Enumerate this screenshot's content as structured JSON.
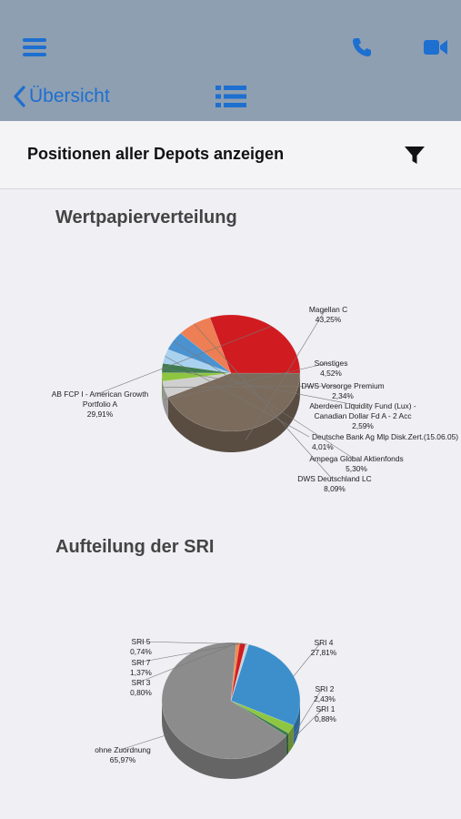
{
  "navbar": {
    "back_label": "Übersicht",
    "menu_icon": "hamburger-menu-icon",
    "phone_icon": "phone-icon",
    "video_icon": "video-camera-icon",
    "list_icon": "list-icon",
    "accent": "#1d6fd0"
  },
  "subheader": {
    "title": "Positionen aller Depots anzeigen",
    "filter_icon": "filter-icon"
  },
  "chart_data": [
    {
      "type": "pie",
      "title": "Wertpapierverteilung",
      "slices": [
        {
          "label": [
            "Magellan C"
          ],
          "value": 43.25,
          "value_label": "43,25%",
          "color": "#7b6b5c"
        },
        {
          "label": [
            "Sonstiges"
          ],
          "value": 4.52,
          "value_label": "4,52%",
          "color": "#cfcfcf"
        },
        {
          "label": [
            "DWS Vorsorge Premium"
          ],
          "value": 2.34,
          "value_label": "2,34%",
          "color": "#8fc641"
        },
        {
          "label": [
            "Aberdeen Liquidity Fund (Lux) -",
            "Canadian Dollar Fd A - 2 Acc"
          ],
          "value": 2.59,
          "value_label": "2,59%",
          "color": "#3f7d4f"
        },
        {
          "label": [
            "Deutsche Bank Ag Mlp Disk.Zert.(15.06.05)"
          ],
          "value": 4.01,
          "value_label": "4,01%",
          "color": "#a9d2ef"
        },
        {
          "label": [
            "Ampega Global Aktienfonds"
          ],
          "value": 5.3,
          "value_label": "5,30%",
          "color": "#4b93d0"
        },
        {
          "label": [
            "DWS Deutschland LC"
          ],
          "value": 8.09,
          "value_label": "8,09%",
          "color": "#ee7e53"
        },
        {
          "label": [
            "AB FCP I - American Growth",
            "Portfolio A"
          ],
          "value": 29.91,
          "value_label": "29,91%",
          "color": "#d01c20"
        }
      ]
    },
    {
      "type": "pie",
      "title": "Aufteilung der SRI",
      "slices": [
        {
          "label": [
            "SRI 4"
          ],
          "value": 27.81,
          "value_label": "27,81%",
          "color": "#3d8fcc"
        },
        {
          "label": [
            "SRI 2"
          ],
          "value": 2.43,
          "value_label": "2,43%",
          "color": "#8fc641"
        },
        {
          "label": [
            "SRI 1"
          ],
          "value": 0.88,
          "value_label": "0,88%",
          "color": "#3f7d4f"
        },
        {
          "label": [
            "ohne Zuordnung"
          ],
          "value": 65.97,
          "value_label": "65,97%",
          "color": "#8c8c8c"
        },
        {
          "label": [
            "SRI 3"
          ],
          "value": 0.8,
          "value_label": "0,80%",
          "color": "#f08a4b"
        },
        {
          "label": [
            "SRI 7"
          ],
          "value": 1.37,
          "value_label": "1,37%",
          "color": "#d01c20"
        },
        {
          "label": [
            "SRI 5"
          ],
          "value": 0.74,
          "value_label": "0,74%",
          "color": "#c9d3dc"
        }
      ]
    }
  ]
}
